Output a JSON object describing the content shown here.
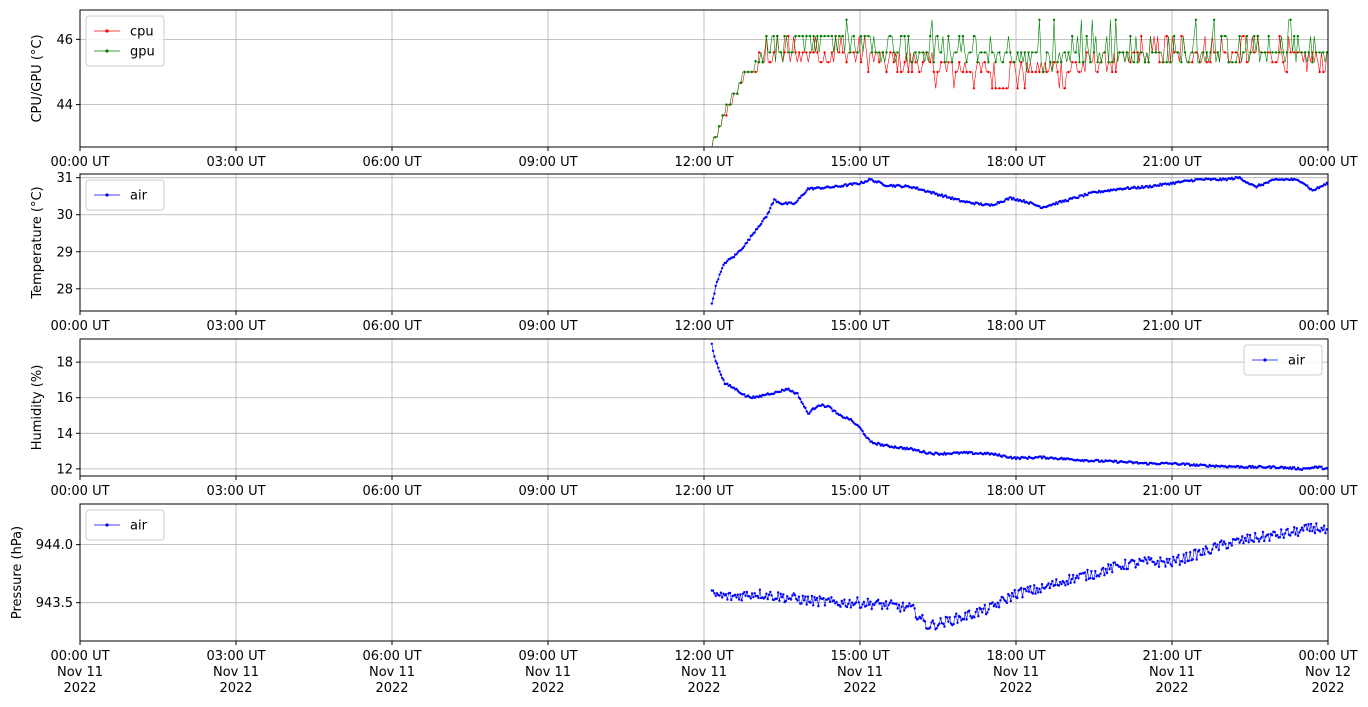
{
  "chart_data": [
    {
      "type": "line",
      "ylabel": "CPU/GPU (°C)",
      "ylim": [
        42.7,
        46.9
      ],
      "yticks": [
        44,
        46
      ],
      "ytick_labels": [
        "44",
        "46"
      ],
      "xlim_hours": [
        0,
        24
      ],
      "xticks_hours": [
        0,
        3,
        6,
        9,
        12,
        15,
        18,
        21,
        24
      ],
      "xtick_labels": [
        "00:00 UT",
        "03:00 UT",
        "06:00 UT",
        "09:00 UT",
        "12:00 UT",
        "15:00 UT",
        "18:00 UT",
        "21:00 UT",
        "00:00 UT"
      ],
      "grid": true,
      "legend_position": "upper-left",
      "series": [
        {
          "name": "cpu",
          "color": "#ff0000",
          "x_hours": [
            12.15,
            12.3,
            12.45,
            12.6,
            12.75,
            12.9,
            13.0,
            13.2,
            13.5,
            14.0,
            14.5,
            15.0,
            15.5,
            16.0,
            16.5,
            17.0,
            17.5,
            17.7,
            17.9,
            18.5,
            19.0,
            19.5,
            20.0,
            20.5,
            21.0,
            21.5,
            22.0,
            22.5,
            23.0,
            23.5,
            24.0
          ],
          "y": [
            42.8,
            43.3,
            43.8,
            44.3,
            44.8,
            45.0,
            45.0,
            45.6,
            45.6,
            45.6,
            45.6,
            45.6,
            45.3,
            45.3,
            45.1,
            45.0,
            45.0,
            44.5,
            45.0,
            45.0,
            45.0,
            45.3,
            45.3,
            45.6,
            45.6,
            45.6,
            45.6,
            45.6,
            45.6,
            45.3,
            45.3
          ]
        },
        {
          "name": "gpu",
          "color": "#008000",
          "x_hours": [
            12.15,
            12.3,
            12.45,
            12.6,
            12.75,
            12.9,
            13.0,
            13.2,
            13.5,
            14.0,
            14.5,
            15.0,
            15.5,
            16.0,
            16.5,
            17.0,
            17.5,
            18.0,
            18.5,
            19.0,
            19.5,
            20.0,
            20.5,
            21.0,
            21.5,
            22.0,
            22.5,
            23.0,
            23.5,
            24.0
          ],
          "y": [
            42.8,
            43.3,
            44.0,
            44.3,
            45.0,
            45.0,
            45.3,
            46.1,
            45.6,
            46.1,
            46.1,
            46.1,
            45.6,
            45.6,
            45.6,
            45.6,
            45.6,
            45.6,
            45.3,
            45.6,
            45.6,
            45.6,
            45.6,
            45.6,
            45.6,
            45.6,
            45.6,
            45.6,
            45.6,
            45.6
          ]
        }
      ]
    },
    {
      "type": "line",
      "ylabel": "Temperature (°C)",
      "ylim": [
        27.4,
        31.1
      ],
      "yticks": [
        28,
        29,
        30,
        31
      ],
      "ytick_labels": [
        "28",
        "29",
        "30",
        "31"
      ],
      "xlim_hours": [
        0,
        24
      ],
      "xticks_hours": [
        0,
        3,
        6,
        9,
        12,
        15,
        18,
        21,
        24
      ],
      "xtick_labels": [
        "00:00 UT",
        "03:00 UT",
        "06:00 UT",
        "09:00 UT",
        "12:00 UT",
        "15:00 UT",
        "18:00 UT",
        "21:00 UT",
        "00:00 UT"
      ],
      "grid": true,
      "legend_position": "upper-left",
      "series": [
        {
          "name": "air",
          "color": "#0000ff",
          "x_hours": [
            12.15,
            12.25,
            12.4,
            12.6,
            12.8,
            13.0,
            13.2,
            13.35,
            13.5,
            13.75,
            14.0,
            14.5,
            15.0,
            15.2,
            15.5,
            16.0,
            16.5,
            17.0,
            17.5,
            17.9,
            18.2,
            18.5,
            19.0,
            19.5,
            20.0,
            20.5,
            21.0,
            21.5,
            22.0,
            22.3,
            22.6,
            23.0,
            23.3,
            23.5,
            23.7,
            24.0
          ],
          "y": [
            27.6,
            28.2,
            28.7,
            28.9,
            29.2,
            29.6,
            29.95,
            30.4,
            30.3,
            30.3,
            30.7,
            30.75,
            30.85,
            30.95,
            30.8,
            30.75,
            30.55,
            30.35,
            30.25,
            30.45,
            30.35,
            30.2,
            30.4,
            30.6,
            30.7,
            30.75,
            30.85,
            30.95,
            30.95,
            31.0,
            30.75,
            30.95,
            30.95,
            30.9,
            30.65,
            30.85
          ]
        }
      ]
    },
    {
      "type": "line",
      "ylabel": "Humidity (%)",
      "ylim": [
        11.6,
        19.3
      ],
      "yticks": [
        12,
        14,
        16,
        18
      ],
      "ytick_labels": [
        "12",
        "14",
        "16",
        "18"
      ],
      "xlim_hours": [
        0,
        24
      ],
      "xticks_hours": [
        0,
        3,
        6,
        9,
        12,
        15,
        18,
        21,
        24
      ],
      "xtick_labels": [
        "00:00 UT",
        "03:00 UT",
        "06:00 UT",
        "09:00 UT",
        "12:00 UT",
        "15:00 UT",
        "18:00 UT",
        "21:00 UT",
        "00:00 UT"
      ],
      "grid": true,
      "legend_position": "upper-right",
      "series": [
        {
          "name": "air",
          "color": "#0000ff",
          "x_hours": [
            12.15,
            12.2,
            12.3,
            12.4,
            12.6,
            12.8,
            13.0,
            13.2,
            13.4,
            13.6,
            13.8,
            14.0,
            14.2,
            14.4,
            14.6,
            14.8,
            15.0,
            15.2,
            15.5,
            16.0,
            16.3,
            16.5,
            17.0,
            17.5,
            18.0,
            18.5,
            19.0,
            19.5,
            20.0,
            20.5,
            21.0,
            21.5,
            22.0,
            22.5,
            23.0,
            23.5,
            23.8,
            24.0
          ],
          "y": [
            19.0,
            18.3,
            17.5,
            16.8,
            16.5,
            16.1,
            16.0,
            16.2,
            16.3,
            16.5,
            16.2,
            15.1,
            15.6,
            15.5,
            15.0,
            14.8,
            14.3,
            13.5,
            13.3,
            13.1,
            12.9,
            12.85,
            12.9,
            12.85,
            12.6,
            12.65,
            12.55,
            12.45,
            12.4,
            12.3,
            12.3,
            12.2,
            12.15,
            12.1,
            12.1,
            12.0,
            12.1,
            12.0
          ]
        }
      ]
    },
    {
      "type": "line",
      "ylabel": "Pressure (hPa)",
      "ylim": [
        943.17,
        944.35
      ],
      "yticks": [
        943.5,
        944.0
      ],
      "ytick_labels": [
        "943.5",
        "944.0"
      ],
      "xlim_hours": [
        0,
        24
      ],
      "xticks_hours": [
        0,
        3,
        6,
        9,
        12,
        15,
        18,
        21,
        24
      ],
      "xtick_labels": [
        [
          "00:00 UT",
          "Nov 11",
          "2022"
        ],
        [
          "03:00 UT",
          "Nov 11",
          "2022"
        ],
        [
          "06:00 UT",
          "Nov 11",
          "2022"
        ],
        [
          "09:00 UT",
          "Nov 11",
          "2022"
        ],
        [
          "12:00 UT",
          "Nov 11",
          "2022"
        ],
        [
          "15:00 UT",
          "Nov 11",
          "2022"
        ],
        [
          "18:00 UT",
          "Nov 11",
          "2022"
        ],
        [
          "21:00 UT",
          "Nov 11",
          "2022"
        ],
        [
          "00:00 UT",
          "Nov 12",
          "2022"
        ]
      ],
      "grid": true,
      "legend_position": "upper-left",
      "series": [
        {
          "name": "air",
          "color": "#0000ff",
          "x_hours": [
            12.15,
            12.5,
            13.0,
            13.5,
            14.0,
            14.5,
            15.0,
            15.5,
            16.0,
            16.3,
            16.6,
            17.0,
            17.5,
            18.0,
            18.5,
            19.0,
            19.5,
            20.0,
            20.5,
            21.0,
            21.5,
            22.0,
            22.5,
            23.0,
            23.5,
            23.8,
            24.0
          ],
          "y": [
            943.57,
            943.55,
            943.58,
            943.55,
            943.52,
            943.5,
            943.5,
            943.48,
            943.45,
            943.3,
            943.33,
            943.38,
            943.45,
            943.58,
            943.62,
            943.7,
            943.75,
            943.82,
            943.85,
            943.85,
            943.92,
            944.0,
            944.05,
            944.08,
            944.12,
            944.15,
            944.1
          ]
        }
      ]
    }
  ]
}
